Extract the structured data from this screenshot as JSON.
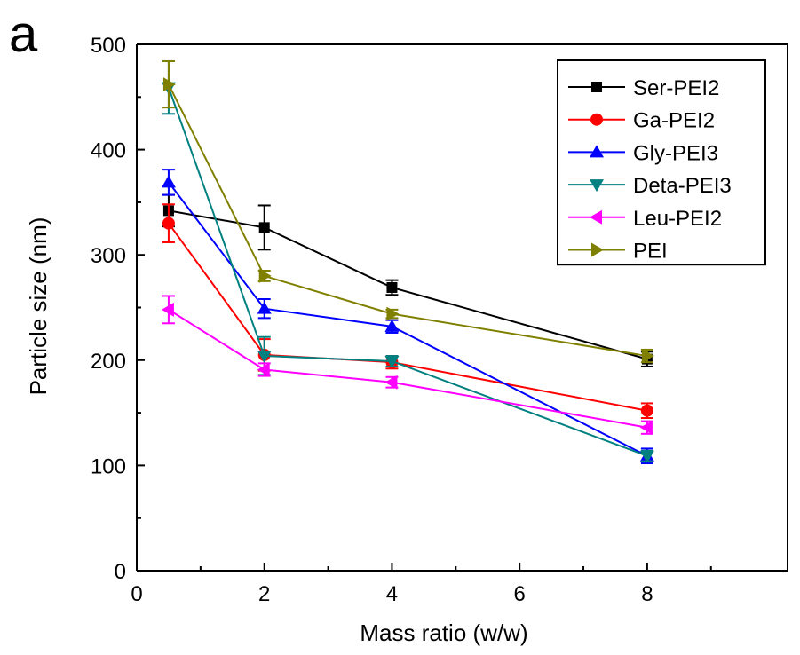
{
  "chart_data": {
    "type": "line",
    "panel_label": "a",
    "xlabel": "Mass ratio (w/w)",
    "ylabel": "Particle size (nm)",
    "xlim": [
      0,
      10.2
    ],
    "ylim": [
      0,
      500
    ],
    "x_ticks": [
      0,
      2,
      4,
      6,
      8
    ],
    "y_ticks": [
      0,
      100,
      200,
      300,
      400,
      500
    ],
    "legend_position": "top-right",
    "grid": false,
    "series": [
      {
        "name": "Ser-PEI2",
        "color": "#000000",
        "marker": "square",
        "x": [
          0.5,
          2,
          4,
          8
        ],
        "y": [
          342,
          326,
          269,
          201
        ],
        "err": [
          15,
          21,
          7,
          7
        ]
      },
      {
        "name": "Ga-PEI2",
        "color": "#ff0000",
        "marker": "circle",
        "x": [
          0.5,
          2,
          4,
          8
        ],
        "y": [
          330,
          205,
          198,
          152
        ],
        "err": [
          18,
          15,
          6,
          7
        ]
      },
      {
        "name": "Gly-PEI3",
        "color": "#0000ff",
        "marker": "triangle-up",
        "x": [
          0.5,
          2,
          4,
          8
        ],
        "y": [
          369,
          249,
          232,
          109
        ],
        "err": [
          12,
          9,
          6,
          7
        ]
      },
      {
        "name": "Deta-PEI3",
        "color": "#008080",
        "marker": "triangle-down",
        "x": [
          0.5,
          2,
          4,
          8
        ],
        "y": [
          459,
          204,
          199,
          109
        ],
        "err": [
          25,
          18,
          5,
          5
        ]
      },
      {
        "name": "Leu-PEI2",
        "color": "#ff00ff",
        "marker": "triangle-left",
        "x": [
          0.5,
          2,
          4,
          8
        ],
        "y": [
          248,
          191,
          179,
          136
        ],
        "err": [
          13,
          6,
          5,
          6
        ]
      },
      {
        "name": "PEI",
        "color": "#808000",
        "marker": "triangle-right",
        "x": [
          0.5,
          2,
          4,
          8
        ],
        "y": [
          462,
          280,
          244,
          204
        ],
        "err": [
          22,
          5,
          4,
          6
        ]
      }
    ]
  }
}
